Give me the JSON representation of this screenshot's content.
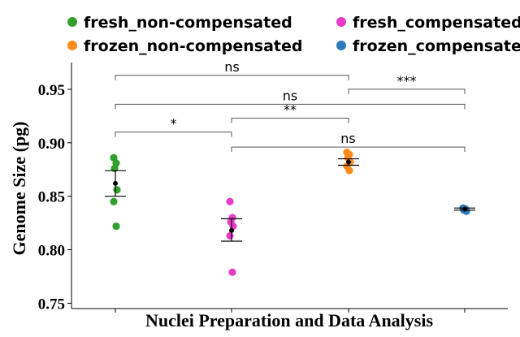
{
  "chart_data": {
    "type": "scatter",
    "title": "",
    "xlabel": "Nuclei Preparation and Data Analysis",
    "ylabel": "Genome Size (pg)",
    "ylim": [
      0.745,
      0.975
    ],
    "yticks": [
      "0.75",
      "0.80",
      "0.85",
      "0.90",
      "0.95"
    ],
    "grid": false,
    "legend_position": "top",
    "categories": [
      "fresh_non-compensated",
      "fresh_compensated",
      "frozen_non-compensated",
      "frozen_compensated"
    ],
    "series": [
      {
        "name": "fresh_non-compensated",
        "color": "#33a02c",
        "points": [
          0.886,
          0.881,
          0.876,
          0.856,
          0.845,
          0.822
        ],
        "mean": 0.862,
        "error": [
          0.85,
          0.874
        ]
      },
      {
        "name": "fresh_compensated",
        "color": "#e83cc8",
        "points": [
          0.845,
          0.83,
          0.826,
          0.822,
          0.813,
          0.779
        ],
        "mean": 0.818,
        "error": [
          0.808,
          0.829
        ]
      },
      {
        "name": "frozen_non-compensated",
        "color": "#ff8c1a",
        "points": [
          0.891,
          0.889,
          0.886,
          0.882,
          0.878,
          0.874
        ],
        "mean": 0.882,
        "error": [
          0.879,
          0.885
        ]
      },
      {
        "name": "frozen_compensated",
        "color": "#2b7bba",
        "points": [
          0.839,
          0.838,
          0.837,
          0.836
        ],
        "mean": 0.838,
        "error": [
          0.837,
          0.839
        ]
      }
    ],
    "comparisons": [
      {
        "groups": [
          1,
          2
        ],
        "y": 0.91,
        "label": "*"
      },
      {
        "groups": [
          2,
          3
        ],
        "y": 0.923,
        "label": "**"
      },
      {
        "groups": [
          1,
          3
        ],
        "y": 0.963,
        "label": "ns"
      },
      {
        "groups": [
          1,
          4
        ],
        "y": 0.936,
        "label": "ns"
      },
      {
        "groups": [
          3,
          4
        ],
        "y": 0.95,
        "label": "***"
      },
      {
        "groups": [
          2,
          4
        ],
        "y": 0.896,
        "label": "ns"
      }
    ]
  }
}
